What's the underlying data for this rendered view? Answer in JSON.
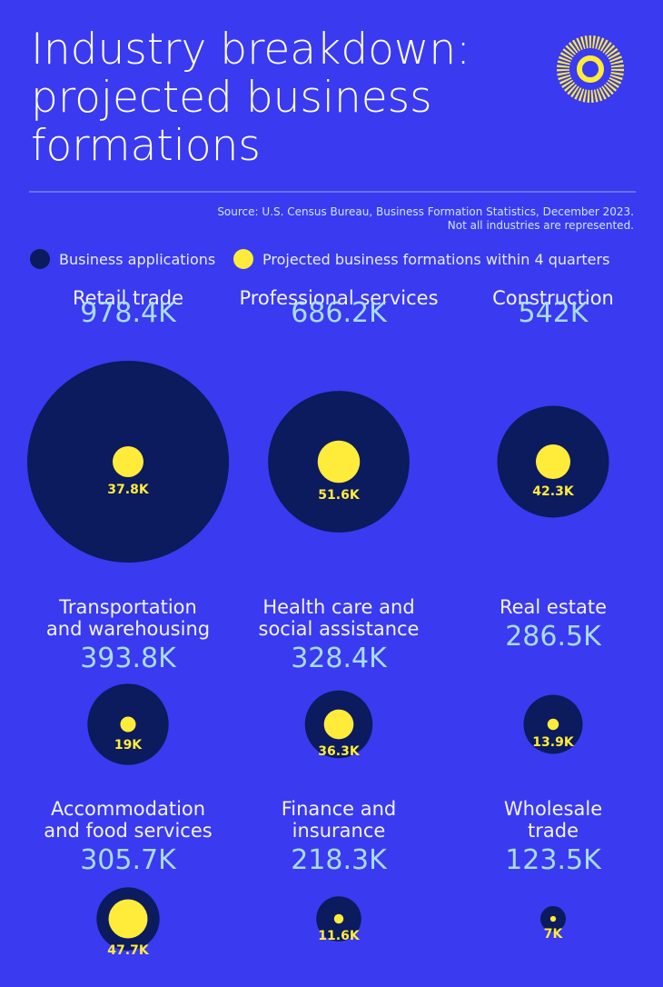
{
  "chart_data": {
    "type": "bubble",
    "title": "Industry breakdown:\nprojected business\nformations",
    "source": [
      "Source: U.S. Census Bureau, Business Formation Statistics, December 2023.",
      "Not all industries are represented."
    ],
    "categories": [
      "Retail trade",
      "Professional services",
      "Construction",
      "Transportation\nand warehousing",
      "Health care and\nsocial assistance",
      "Real estate",
      "Accommodation\nand food services",
      "Finance and\ninsurance",
      "Wholesale\ntrade"
    ],
    "series": [
      {
        "name": "Business applications",
        "color": "#0c1a5e",
        "values": [
          978400,
          686200,
          542000,
          393800,
          328400,
          286500,
          305700,
          218300,
          123500
        ],
        "value_labels": [
          "978.4K",
          "686.2K",
          "542K",
          "393.8K",
          "328.4K",
          "286.5K",
          "305.7K",
          "218.3K",
          "123.5K"
        ]
      },
      {
        "name": "Projected business formations within 4 quarters",
        "color": "#ffec3a",
        "values": [
          37800,
          51600,
          42300,
          19000,
          36300,
          13900,
          47700,
          11600,
          7000
        ],
        "value_labels": [
          "37.8K",
          "51.6K",
          "42.3K",
          "19K",
          "36.3K",
          "13.9K",
          "47.7K",
          "11.6K",
          "7K"
        ]
      }
    ]
  }
}
